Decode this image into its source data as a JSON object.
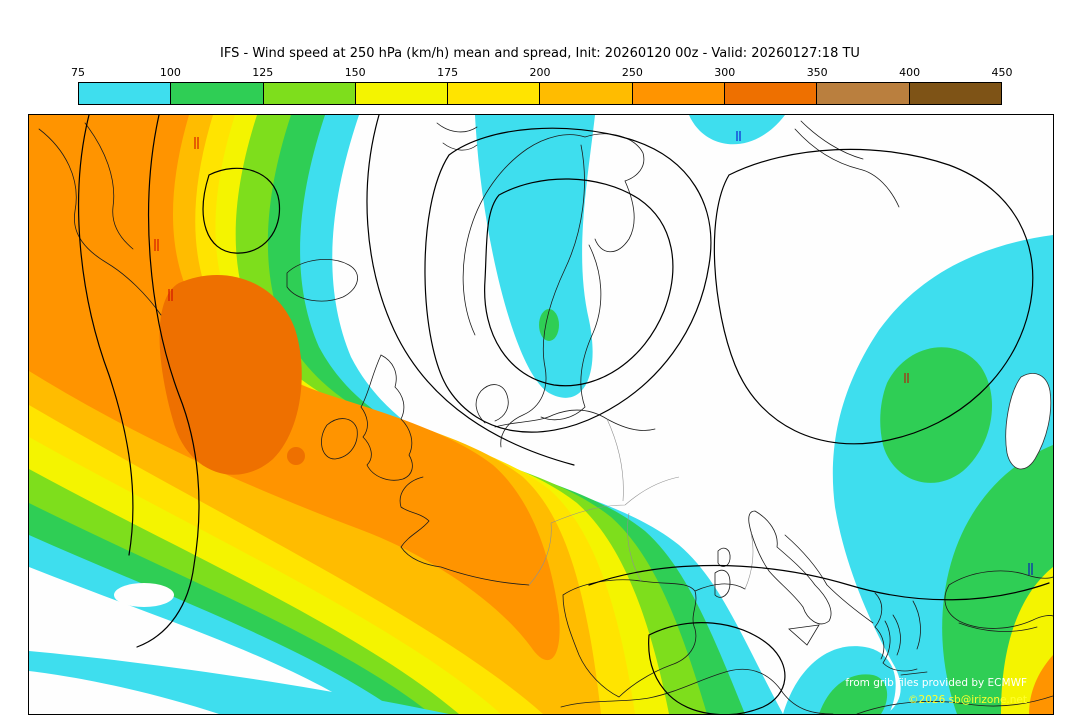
{
  "header": {
    "title": "IFS - Wind speed at 250 hPa (km/h) mean and spread, Init: 20260120 00z - Valid: 20260127:18 TU"
  },
  "colorbar": {
    "ticks": [
      "75",
      "100",
      "125",
      "150",
      "175",
      "200",
      "250",
      "300",
      "350",
      "400",
      "450"
    ],
    "colors": [
      "#3EDEEE",
      "#2FCE55",
      "#7EDE1C",
      "#F4F400",
      "#FFE400",
      "#FFBC00",
      "#FF9400",
      "#EE7000",
      "#BA7F3E",
      "#7E5316"
    ]
  },
  "map": {
    "credits": {
      "line1": "from grib files provided by ECMWF",
      "line2": "©2026 sb@irizone.net"
    }
  }
}
